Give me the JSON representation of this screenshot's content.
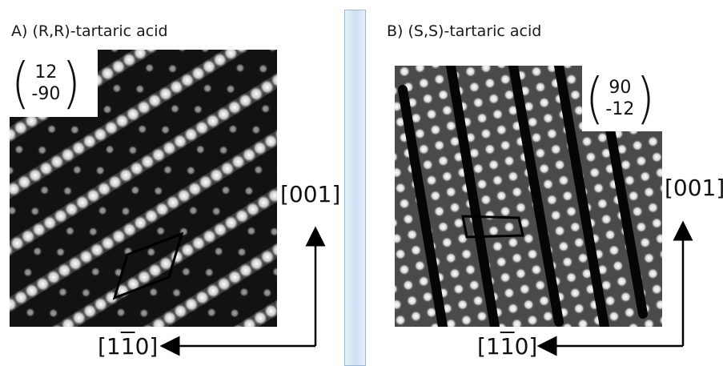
{
  "panels": [
    {
      "title": "A) (R,R)-tartaric acid",
      "matrix": {
        "top": "12",
        "bottom": "-90"
      },
      "vertical_axis": "[001]",
      "horizontal_axis": {
        "pre": "[1",
        "bar": "1",
        "post": "0]"
      }
    },
    {
      "title": "B) (S,S)-tartaric acid",
      "matrix": {
        "top": "90",
        "bottom": "-12"
      },
      "vertical_axis": "[001]",
      "horizontal_axis": {
        "pre": "[1",
        "bar": "1",
        "post": "0]"
      }
    }
  ],
  "colors": {
    "divider": "#cfe0f2",
    "stm_dark": "#101010",
    "stm_bright": "#f2f2f2"
  }
}
